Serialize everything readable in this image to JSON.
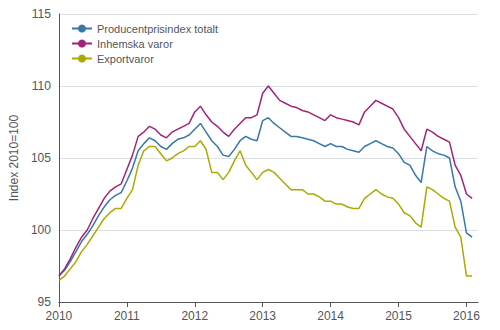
{
  "chart_data": {
    "type": "line",
    "ylabel": "Index 2010=100",
    "x": [
      2010,
      2010.083333,
      2010.166667,
      2010.25,
      2010.333333,
      2010.416667,
      2010.5,
      2010.583333,
      2010.666667,
      2010.75,
      2010.833333,
      2010.916667,
      2011,
      2011.083333,
      2011.166667,
      2011.25,
      2011.333333,
      2011.416667,
      2011.5,
      2011.583333,
      2011.666667,
      2011.75,
      2011.833333,
      2011.916667,
      2012,
      2012.083333,
      2012.166667,
      2012.25,
      2012.333333,
      2012.416667,
      2012.5,
      2012.583333,
      2012.666667,
      2012.75,
      2012.833333,
      2012.916667,
      2013,
      2013.083333,
      2013.166667,
      2013.25,
      2013.333333,
      2013.416667,
      2013.5,
      2013.583333,
      2013.666667,
      2013.75,
      2013.833333,
      2013.916667,
      2014,
      2014.083333,
      2014.166667,
      2014.25,
      2014.333333,
      2014.416667,
      2014.5,
      2014.583333,
      2014.666667,
      2014.75,
      2014.833333,
      2014.916667,
      2015,
      2015.083333,
      2015.166667,
      2015.25,
      2015.333333,
      2015.416667,
      2015.5,
      2015.583333,
      2015.666667,
      2015.75,
      2015.833333,
      2015.916667,
      2016,
      2016.083333
    ],
    "xlim": [
      2010.0,
      2016.17
    ],
    "xticks": [
      2010,
      2011,
      2012,
      2013,
      2014,
      2015,
      2016
    ],
    "ylim": [
      95,
      115
    ],
    "yticks": [
      95,
      100,
      105,
      110,
      115
    ],
    "grid": true,
    "legend": "upper left",
    "series": [
      {
        "name": "Producentprisindex totalt",
        "color": "#3878a8",
        "values": [
          96.8,
          97.2,
          97.8,
          98.5,
          99.2,
          99.7,
          100.3,
          101.0,
          101.6,
          102.1,
          102.4,
          102.6,
          103.4,
          104.3,
          105.5,
          106.0,
          106.4,
          106.2,
          105.8,
          105.6,
          106.0,
          106.3,
          106.4,
          106.6,
          107.0,
          107.4,
          106.8,
          106.2,
          105.8,
          105.2,
          105.1,
          105.6,
          106.2,
          106.5,
          106.3,
          106.2,
          107.6,
          107.8,
          107.4,
          107.1,
          106.8,
          106.5,
          106.5,
          106.4,
          106.3,
          106.2,
          106.0,
          105.8,
          106.0,
          105.8,
          105.8,
          105.6,
          105.5,
          105.4,
          105.8,
          106.0,
          106.2,
          106.0,
          105.8,
          105.7,
          105.3,
          104.7,
          104.5,
          103.8,
          103.3,
          105.8,
          105.5,
          105.3,
          105.2,
          105.0,
          103.0,
          102.0,
          99.8,
          99.5
        ]
      },
      {
        "name": "Inhemska varor",
        "color": "#a0257a",
        "values": [
          96.8,
          97.3,
          98.0,
          98.8,
          99.5,
          100.0,
          100.8,
          101.5,
          102.2,
          102.7,
          103.0,
          103.2,
          104.2,
          105.2,
          106.5,
          106.8,
          107.2,
          107.0,
          106.6,
          106.4,
          106.8,
          107.0,
          107.2,
          107.4,
          108.2,
          108.6,
          108.0,
          107.5,
          107.2,
          106.8,
          106.5,
          107.0,
          107.4,
          107.8,
          107.8,
          108.0,
          109.5,
          110.0,
          109.5,
          109.0,
          108.8,
          108.6,
          108.5,
          108.3,
          108.2,
          108.0,
          107.8,
          107.6,
          108.0,
          107.8,
          107.7,
          107.6,
          107.5,
          107.3,
          108.2,
          108.6,
          109.0,
          108.8,
          108.6,
          108.4,
          107.8,
          107.0,
          106.5,
          106.0,
          105.5,
          107.0,
          106.8,
          106.5,
          106.3,
          106.1,
          104.5,
          103.8,
          102.5,
          102.2
        ]
      },
      {
        "name": "Exportvaror",
        "color": "#aaaa00",
        "values": [
          96.5,
          96.8,
          97.3,
          97.8,
          98.5,
          99.0,
          99.6,
          100.2,
          100.8,
          101.2,
          101.5,
          101.5,
          102.2,
          102.8,
          104.5,
          105.5,
          105.8,
          105.8,
          105.3,
          104.8,
          105.0,
          105.3,
          105.5,
          105.8,
          105.8,
          106.2,
          105.6,
          104.0,
          104.0,
          103.5,
          104.0,
          104.8,
          105.5,
          104.5,
          104.0,
          103.5,
          104.0,
          104.2,
          104.0,
          103.6,
          103.2,
          102.8,
          102.8,
          102.8,
          102.5,
          102.5,
          102.3,
          102.0,
          102.0,
          101.8,
          101.8,
          101.6,
          101.5,
          101.5,
          102.2,
          102.5,
          102.8,
          102.5,
          102.3,
          102.2,
          101.8,
          101.2,
          101.0,
          100.5,
          100.2,
          103.0,
          102.8,
          102.5,
          102.2,
          102.0,
          100.2,
          99.5,
          96.8,
          96.8
        ]
      }
    ]
  }
}
